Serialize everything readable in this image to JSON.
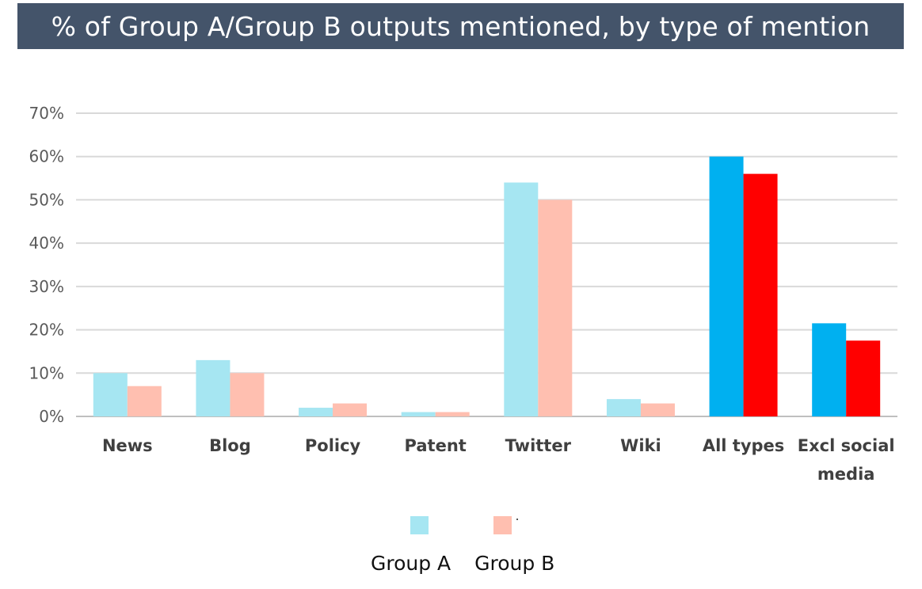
{
  "title": "% of Group A/Group B outputs mentioned, by type of mention",
  "chart_data": {
    "type": "bar",
    "categories": [
      "News",
      "Blog",
      "Policy",
      "Patent",
      "Twitter",
      "Wiki",
      "All types",
      "Excl social media"
    ],
    "category_lines": [
      [
        "News"
      ],
      [
        "Blog"
      ],
      [
        "Policy"
      ],
      [
        "Patent"
      ],
      [
        "Twitter"
      ],
      [
        "Wiki"
      ],
      [
        "All types"
      ],
      [
        "Excl social",
        "media"
      ]
    ],
    "series": [
      {
        "name": "Group A",
        "values": [
          10,
          13,
          2,
          1,
          54,
          4,
          60,
          21.5
        ],
        "colors": [
          "#a6e6f2",
          "#a6e6f2",
          "#a6e6f2",
          "#a6e6f2",
          "#a6e6f2",
          "#a6e6f2",
          "#00b0f0",
          "#00b0f0"
        ]
      },
      {
        "name": "Group B",
        "values": [
          7,
          10,
          3,
          1,
          50,
          3,
          56,
          17.5
        ],
        "colors": [
          "#ffbfb0",
          "#ffbfb0",
          "#ffbfb0",
          "#ffbfb0",
          "#ffbfb0",
          "#ffbfb0",
          "#ff0000",
          "#ff0000"
        ]
      }
    ],
    "ylim": [
      0,
      70
    ],
    "yticks": [
      "0%",
      "10%",
      "20%",
      "30%",
      "40%",
      "50%",
      "60%",
      "70%"
    ],
    "grid": true,
    "legend_position": "bottom",
    "legend_swatch_colors": [
      "#a6e6f2",
      "#ffbfb0"
    ],
    "xlabel": "",
    "ylabel": ""
  }
}
